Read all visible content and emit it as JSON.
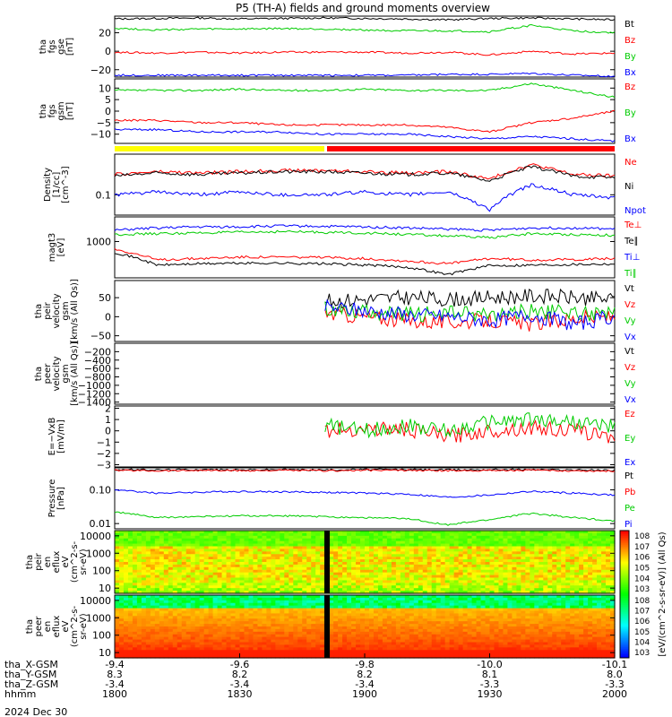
{
  "chart_data": {
    "type": "line",
    "title": "P5 (TH-A) fields and ground moments overview",
    "date_label": "2024 Dec 30",
    "time_axis": {
      "range": [
        "18:00",
        "20:00"
      ],
      "row_labels": [
        "tha_X-GSM",
        "tha_Y-GSM",
        "tha_Z-GSM",
        "hhmm"
      ],
      "ticks": [
        {
          "x": "-9.4",
          "y": "8.3",
          "z": "-3.4",
          "t": "1800"
        },
        {
          "x": "-9.6",
          "y": "8.2",
          "z": "-3.4",
          "t": "1830"
        },
        {
          "x": "-9.8",
          "y": "8.2",
          "z": "-3.4",
          "t": "1900"
        },
        {
          "x": "-10.0",
          "y": "8.1",
          "z": "-3.3",
          "t": "1930"
        },
        {
          "x": "-10.1",
          "y": "8.0",
          "z": "-3.3",
          "t": "2000"
        }
      ]
    },
    "mode_bar": {
      "colors": [
        "#ffff00",
        "#ff0000"
      ],
      "switch_time": "18:57"
    },
    "panels": [
      {
        "id": "fgs_gse",
        "ylabel": [
          "tha",
          "fgs",
          "gse",
          "[nT]"
        ],
        "scale": "linear",
        "ylim": [
          -28,
          38
        ],
        "ticks": [
          20,
          0,
          -20
        ],
        "tick_labels": [
          "20",
          "0",
          "−20"
        ],
        "series": [
          {
            "name": "Bt",
            "color": "#000000",
            "values": [
              35,
              35.5,
              36,
              35,
              35.5,
              36,
              35.5,
              35,
              34,
              35.5,
              36,
              35,
              34
            ]
          },
          {
            "name": "Bz",
            "color": "#ff0000",
            "values": [
              -1,
              -2,
              -1,
              -2,
              -1,
              -1,
              -1,
              -2,
              -1,
              -4,
              0,
              -3,
              -2
            ]
          },
          {
            "name": "By",
            "color": "#00cc00",
            "values": [
              25,
              23,
              24,
              24,
              24.5,
              24,
              23,
              22,
              22,
              21,
              28,
              22,
              20
            ]
          },
          {
            "name": "Bx",
            "color": "#0000ff",
            "values": [
              -26,
              -26,
              -26,
              -26,
              -26,
              -26,
              -26,
              -26,
              -25,
              -25,
              -24,
              -26,
              -27
            ]
          }
        ]
      },
      {
        "id": "fgs_gsm",
        "ylabel": [
          "tha",
          "fgs",
          "gsm",
          "[nT]"
        ],
        "scale": "linear",
        "ylim": [
          -14,
          14
        ],
        "ticks": [
          10,
          5,
          0,
          -5,
          -10
        ],
        "tick_labels": [
          "10",
          "5",
          "0",
          "−5",
          "−10"
        ],
        "series": [
          {
            "name": "Bz",
            "color": "#ff0000",
            "values": [
              -4,
              -4,
              -5,
              -5,
              -6,
              -6,
              -6,
              -6,
              -7,
              -9,
              -5,
              -3,
              0
            ]
          },
          {
            "name": "By",
            "color": "#00cc00",
            "values": [
              9,
              9,
              9,
              9.5,
              9,
              9,
              9.5,
              9,
              9,
              9,
              12,
              9,
              6
            ]
          },
          {
            "name": "Bx",
            "color": "#0000ff",
            "values": [
              -8,
              -8,
              -9,
              -9,
              -9,
              -10,
              -10,
              -10,
              -11,
              -12,
              -11,
              -12,
              -13
            ]
          }
        ]
      },
      {
        "id": "density",
        "ylabel": [
          "Density",
          "[1/cc]",
          "[cm^-3]"
        ],
        "scale": "log",
        "ylim": [
          0.05,
          0.4
        ],
        "ticks": [
          0.1
        ],
        "tick_labels": [
          "0.1"
        ],
        "series": [
          {
            "name": "Ne",
            "color": "#ff0000",
            "values": [
              0.2,
              0.22,
              0.21,
              0.22,
              0.23,
              0.23,
              0.22,
              0.21,
              0.22,
              0.17,
              0.28,
              0.2,
              0.19
            ]
          },
          {
            "name": "Ni",
            "color": "#000000",
            "values": [
              0.19,
              0.21,
              0.2,
              0.21,
              0.22,
              0.22,
              0.21,
              0.2,
              0.21,
              0.16,
              0.26,
              0.19,
              0.18
            ]
          },
          {
            "name": "Npot",
            "color": "#0000ff",
            "values": [
              0.1,
              0.11,
              0.1,
              0.11,
              0.1,
              0.1,
              0.11,
              0.1,
              0.11,
              0.06,
              0.14,
              0.1,
              0.09
            ]
          }
        ]
      },
      {
        "id": "temperature",
        "ylabel": [
          "magt3",
          "[eV]"
        ],
        "scale": "log",
        "ylim": [
          180,
          3200
        ],
        "ticks": [
          1000
        ],
        "tick_labels": [
          "1000"
        ],
        "series": [
          {
            "name": "Te⊥",
            "color": "#ff0000",
            "values": [
              700,
              420,
              450,
              480,
              480,
              470,
              450,
              400,
              350,
              450,
              420,
              430,
              450
            ]
          },
          {
            "name": "Te∥",
            "color": "#000000",
            "values": [
              600,
              330,
              350,
              360,
              360,
              350,
              330,
              300,
              210,
              320,
              330,
              340,
              350
            ]
          },
          {
            "name": "Ti⊥",
            "color": "#0000ff",
            "values": [
              1700,
              1900,
              2000,
              2000,
              2100,
              2050,
              2000,
              1900,
              1800,
              1700,
              1900,
              1900,
              1800
            ]
          },
          {
            "name": "Ti∥",
            "color": "#00cc00",
            "values": [
              1400,
              1450,
              1500,
              1550,
              1600,
              1550,
              1500,
              1400,
              1300,
              1200,
              1450,
              1400,
              1350
            ]
          }
        ]
      },
      {
        "id": "peir_velocity",
        "ylabel": [
          "tha",
          "peir",
          "velocity",
          "gsm",
          "[km/s (All Qs)]"
        ],
        "scale": "linear",
        "ylim": [
          -65,
          95
        ],
        "ticks": [
          50,
          0,
          -50
        ],
        "tick_labels": [
          "50",
          "0",
          "−50"
        ],
        "data_start_frac": 0.42,
        "series": [
          {
            "name": "Vt",
            "color": "#000000",
            "values": [
              null,
              null,
              null,
              null,
              null,
              40,
              45,
              50,
              45,
              50,
              55,
              50,
              45
            ]
          },
          {
            "name": "Vz",
            "color": "#ff0000",
            "values": [
              null,
              null,
              null,
              null,
              null,
              10,
              0,
              -10,
              -15,
              -10,
              -20,
              -5,
              0
            ]
          },
          {
            "name": "Vy",
            "color": "#00cc00",
            "values": [
              null,
              null,
              null,
              null,
              null,
              20,
              15,
              5,
              10,
              5,
              15,
              10,
              5
            ]
          },
          {
            "name": "Vx",
            "color": "#0000ff",
            "values": [
              null,
              null,
              null,
              null,
              null,
              25,
              15,
              5,
              0,
              -10,
              5,
              -20,
              0
            ]
          }
        ]
      },
      {
        "id": "peer_velocity",
        "ylabel": [
          "tha",
          "peer",
          "velocity",
          "gsm",
          "[km/s (All Qs)]"
        ],
        "scale": "linear",
        "ylim": [
          -1450,
          0
        ],
        "ticks": [
          -200,
          -400,
          -600,
          -800,
          -1000,
          -1200,
          -1400
        ],
        "tick_labels": [
          "−200",
          "−400",
          "−600",
          "−800",
          "−1000",
          "−1200",
          "−1400"
        ],
        "series": [
          {
            "name": "Vt",
            "color": "#000000",
            "values": []
          },
          {
            "name": "Vz",
            "color": "#ff0000",
            "values": []
          },
          {
            "name": "Vy",
            "color": "#00cc00",
            "values": []
          },
          {
            "name": "Vx",
            "color": "#0000ff",
            "values": []
          }
        ]
      },
      {
        "id": "efield",
        "ylabel": [
          "E=−VxB",
          "[mV/m]"
        ],
        "scale": "linear",
        "ylim": [
          -3.2,
          2.2
        ],
        "ticks": [
          2,
          1,
          0,
          -1,
          -2,
          -3
        ],
        "tick_labels": [
          "2",
          "1",
          "0",
          "−1",
          "−2",
          "−3"
        ],
        "data_start_frac": 0.42,
        "series": [
          {
            "name": "Ez",
            "color": "#ff0000",
            "values": [
              null,
              null,
              null,
              null,
              null,
              0,
              0.2,
              0.1,
              -0.5,
              0,
              0.3,
              0,
              -0.5
            ]
          },
          {
            "name": "Ey",
            "color": "#00cc00",
            "values": [
              null,
              null,
              null,
              null,
              null,
              0.5,
              0,
              0.5,
              0,
              0.8,
              1,
              0.8,
              0.3
            ]
          },
          {
            "name": "Ex",
            "color": "#0000ff",
            "values": []
          }
        ]
      },
      {
        "id": "pressure",
        "ylabel": [
          "Pressure",
          "[nPa]"
        ],
        "scale": "log",
        "ylim": [
          0.007,
          0.45
        ],
        "ticks": [
          0.1,
          0.01
        ],
        "tick_labels": [
          "0.10",
          "0.01"
        ],
        "series": [
          {
            "name": "Pt",
            "color": "#000000",
            "values": [
              0.4,
              0.39,
              0.4,
              0.39,
              0.4,
              0.39,
              0.4,
              0.4,
              0.39,
              0.4,
              0.4,
              0.39,
              0.38
            ]
          },
          {
            "name": "Pb",
            "color": "#ff0000",
            "values": [
              0.38,
              0.37,
              0.38,
              0.37,
              0.38,
              0.37,
              0.38,
              0.38,
              0.37,
              0.38,
              0.38,
              0.37,
              0.36
            ]
          },
          {
            "name": "Pe",
            "color": "#00cc00",
            "values": [
              0.022,
              0.015,
              0.016,
              0.017,
              0.017,
              0.016,
              0.015,
              0.014,
              0.009,
              0.013,
              0.02,
              0.015,
              0.012
            ]
          },
          {
            "name": "Pi",
            "color": "#0000ff",
            "values": [
              0.1,
              0.08,
              0.085,
              0.09,
              0.088,
              0.085,
              0.08,
              0.075,
              0.06,
              0.07,
              0.09,
              0.08,
              0.07
            ]
          }
        ]
      },
      {
        "id": "peir_en_eflux",
        "type": "heatmap",
        "ylabel": [
          "tha",
          "peir",
          "en",
          "eflux",
          "eV",
          "(cm^2-s-",
          "sr-eV)"
        ],
        "scale": "log",
        "ylim": [
          5,
          20000
        ],
        "ticks": [
          10000,
          1000,
          100,
          10
        ],
        "tick_labels": [
          "10000",
          "1000",
          "100",
          "10"
        ]
      },
      {
        "id": "peer_en_eflux",
        "type": "heatmap",
        "ylabel": [
          "tha",
          "peer",
          "en",
          "eflux",
          "eV",
          "(cm^2-s-",
          "sr-eV)"
        ],
        "scale": "log",
        "ylim": [
          5,
          20000
        ],
        "ticks": [
          10000,
          1000,
          100,
          10
        ],
        "tick_labels": [
          "10000",
          "1000",
          "100",
          "10"
        ]
      }
    ],
    "colorbar": {
      "label": "[eV/(cm^2-s-sr-eV)] (All Qs)",
      "upper": {
        "ticks": [
          "10^8",
          "10^7",
          "10^6",
          "10^5",
          "10^4",
          "10^3"
        ]
      },
      "lower": {
        "ticks": [
          "10^8",
          "10^7",
          "10^6",
          "10^5",
          "10^4",
          "10^3"
        ]
      }
    }
  }
}
